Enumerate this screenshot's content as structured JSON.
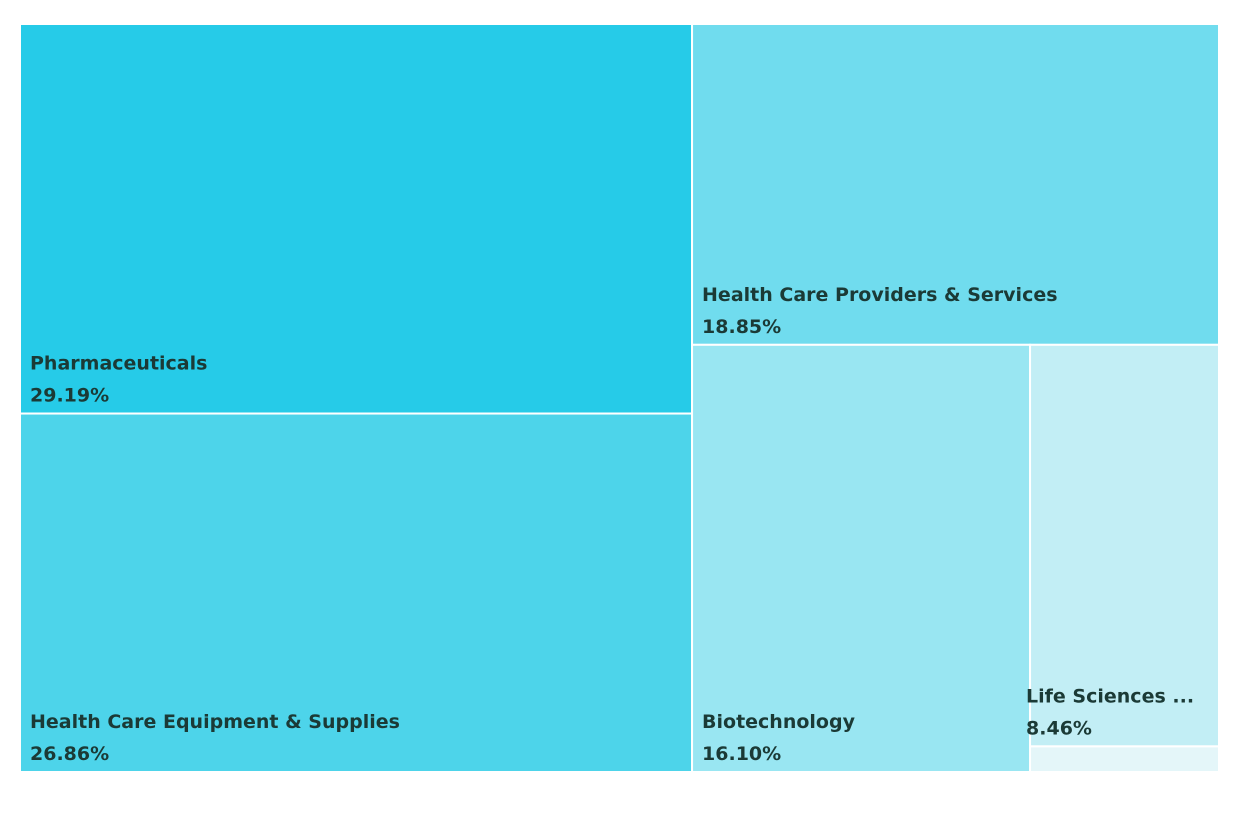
{
  "chart_data": {
    "type": "treemap",
    "items": [
      {
        "label": "Pharmaceuticals",
        "value": 29.19,
        "value_label": "29.19%",
        "color": "#26cbe8"
      },
      {
        "label": "Health Care Equipment & Supplies",
        "value": 26.86,
        "value_label": "26.86%",
        "color": "#4dd4ea"
      },
      {
        "label": "Health Care Providers & Services",
        "value": 18.85,
        "value_label": "18.85%",
        "color": "#70dcee"
      },
      {
        "label": "Biotechnology",
        "value": 16.1,
        "value_label": "16.10%",
        "color": "#99e6f2"
      },
      {
        "label": "Life Sciences ...",
        "value": 8.46,
        "value_label": "8.46%",
        "color": "#c2eef5"
      },
      {
        "label": "",
        "value": 0.54,
        "value_label": "",
        "color": "#e4f6f9"
      }
    ]
  }
}
